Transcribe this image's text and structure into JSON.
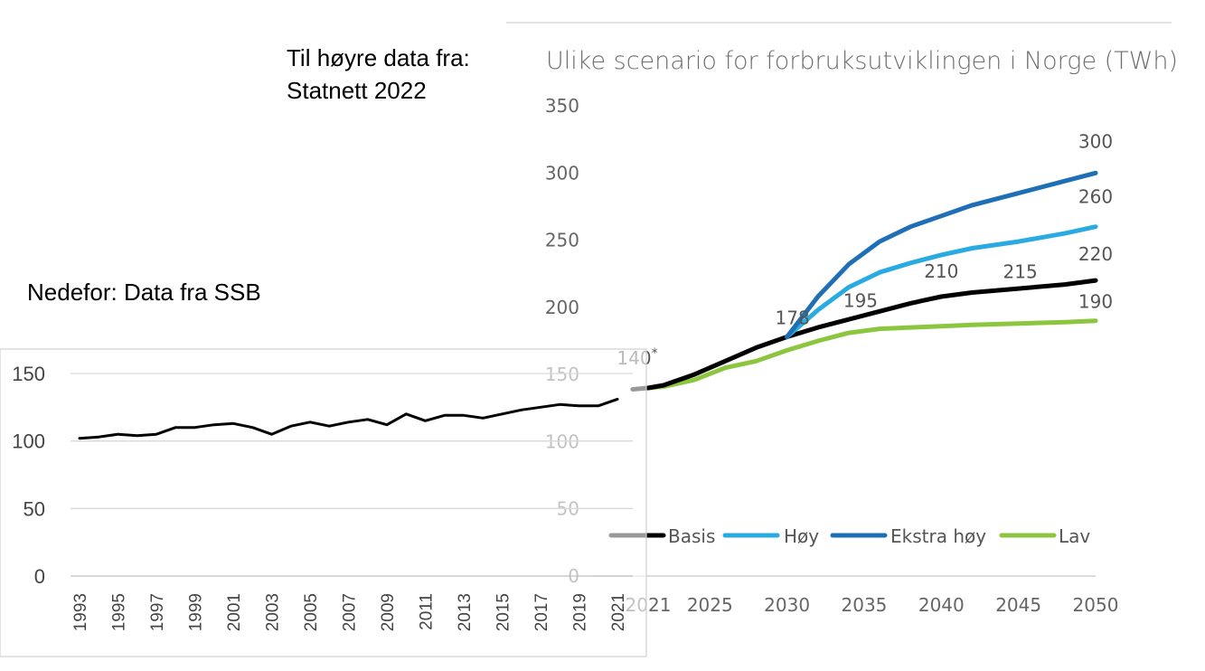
{
  "notes": {
    "top_line1": "Til høyre data fra:",
    "top_line2": "Statnett 2022",
    "bottom": "Nedefor: Data fra SSB"
  },
  "colors": {
    "basis": "#000000",
    "hoy": "#29abe2",
    "ekstra_hoy": "#1f6fb6",
    "lav": "#8cc63f",
    "ssb": "#000000"
  },
  "chart_data": [
    {
      "type": "line",
      "title": "Ulike scenario for forbruksutviklingen i Norge (TWh)",
      "xlabel": "",
      "ylabel": "",
      "ylim": [
        0,
        350
      ],
      "yticks": [
        "350",
        "300",
        "250",
        "200",
        "150",
        "100",
        "50",
        "0"
      ],
      "xticks": [
        "2021",
        "2025",
        "2030",
        "2035",
        "2040",
        "2045",
        "2050"
      ],
      "grid": false,
      "legend": "bottom",
      "series": [
        {
          "name": "Basis",
          "x": [
            2020,
            2021,
            2022,
            2024,
            2026,
            2028,
            2030,
            2032,
            2034,
            2036,
            2038,
            2040,
            2042,
            2045,
            2048,
            2050
          ],
          "y": [
            139,
            140,
            142,
            150,
            160,
            170,
            178,
            185,
            191,
            197,
            203,
            208,
            211,
            214,
            217,
            220
          ]
        },
        {
          "name": "Høy",
          "x": [
            2030,
            2032,
            2034,
            2036,
            2038,
            2040,
            2042,
            2045,
            2048,
            2050
          ],
          "y": [
            178,
            198,
            215,
            226,
            233,
            239,
            244,
            249,
            255,
            260
          ]
        },
        {
          "name": "Ekstra høy",
          "x": [
            2030,
            2032,
            2034,
            2036,
            2038,
            2040,
            2042,
            2045,
            2048,
            2050
          ],
          "y": [
            178,
            208,
            232,
            249,
            260,
            268,
            276,
            285,
            294,
            300
          ]
        },
        {
          "name": "Lav",
          "x": [
            2021,
            2022,
            2024,
            2026,
            2028,
            2030,
            2032,
            2034,
            2036,
            2038,
            2040,
            2042,
            2045,
            2048,
            2050
          ],
          "y": [
            140,
            141,
            146,
            155,
            160,
            168,
            175,
            181,
            184,
            185,
            186,
            187,
            188,
            189,
            190
          ]
        }
      ],
      "annotations": [
        {
          "text": "140*",
          "x": 2021,
          "y": 140
        },
        {
          "text": "178",
          "x": 2030,
          "y": 178
        },
        {
          "text": "195",
          "x": 2035,
          "y": 195
        },
        {
          "text": "210",
          "x": 2040,
          "y": 210
        },
        {
          "text": "215",
          "x": 2045,
          "y": 215
        },
        {
          "text": "300",
          "x": 2050,
          "y": 300
        },
        {
          "text": "260",
          "x": 2050,
          "y": 260
        },
        {
          "text": "220",
          "x": 2050,
          "y": 220
        },
        {
          "text": "190",
          "x": 2050,
          "y": 190
        }
      ]
    },
    {
      "type": "line",
      "title": "",
      "xlabel": "",
      "ylabel": "",
      "ylim": [
        0,
        150
      ],
      "yticks": [
        "150",
        "100",
        "50",
        "0"
      ],
      "xticks": [
        "1993",
        "1995",
        "1997",
        "1999",
        "2001",
        "2003",
        "2005",
        "2007",
        "2009",
        "2011",
        "2013",
        "2015",
        "2017",
        "2019",
        "2021"
      ],
      "grid": true,
      "series": [
        {
          "x": [
            1993,
            1994,
            1995,
            1996,
            1997,
            1998,
            1999,
            2000,
            2001,
            2002,
            2003,
            2004,
            2005,
            2006,
            2007,
            2008,
            2009,
            2010,
            2011,
            2012,
            2013,
            2014,
            2015,
            2016,
            2017,
            2018,
            2019,
            2020,
            2021
          ],
          "y": [
            102,
            103,
            105,
            104,
            105,
            110,
            110,
            112,
            113,
            110,
            105,
            111,
            114,
            111,
            114,
            116,
            112,
            120,
            115,
            119,
            119,
            117,
            120,
            123,
            125,
            127,
            126,
            126,
            131
          ]
        }
      ]
    }
  ]
}
